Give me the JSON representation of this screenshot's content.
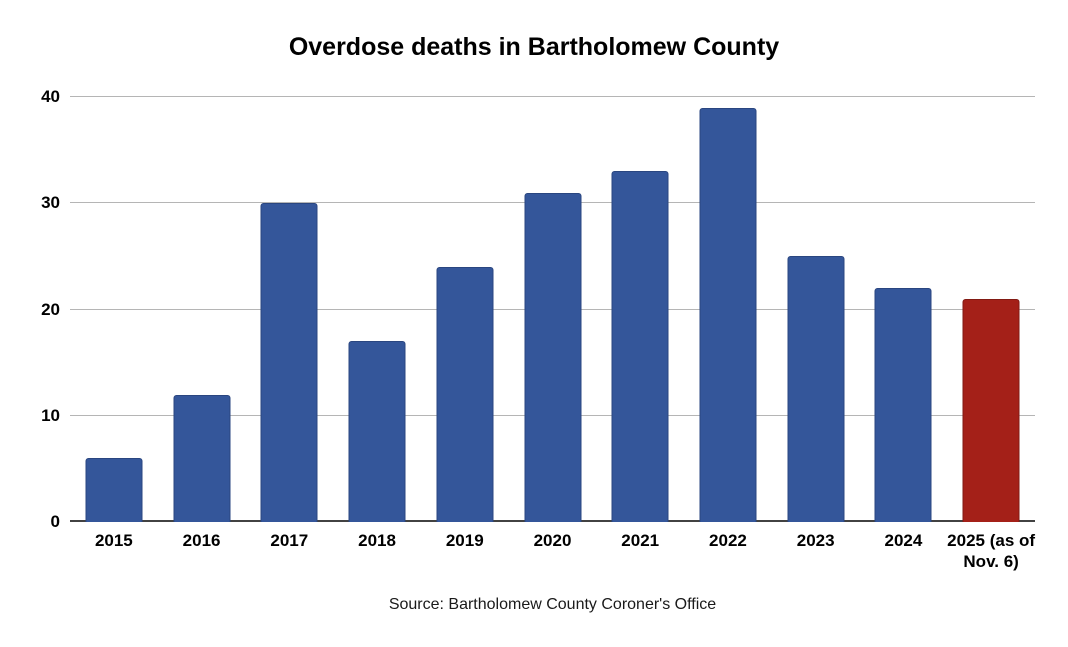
{
  "title": "Overdose deaths in Bartholomew County",
  "source": "Source: Bartholomew County Coroner's Office",
  "colors": {
    "bar_default": "#34569A",
    "bar_default_border": "#2a4680",
    "bar_highlight": "#A42018",
    "bar_highlight_border": "#821a13",
    "gridline": "#b5b5b5",
    "axis_line": "#424242",
    "title_text": "#000000",
    "tick_text": "#000000"
  },
  "chart_data": {
    "type": "bar",
    "title": "Overdose deaths in Bartholomew County",
    "categories": [
      "2015",
      "2016",
      "2017",
      "2018",
      "2019",
      "2020",
      "2021",
      "2022",
      "2023",
      "2024",
      "2025 (as of Nov. 6)"
    ],
    "values": [
      6,
      12,
      30,
      17,
      24,
      31,
      33,
      39,
      25,
      22,
      21
    ],
    "highlight_index": 10,
    "xlabel": "",
    "ylabel": "",
    "ylim": [
      0,
      40
    ],
    "yticks": [
      0,
      10,
      20,
      30,
      40
    ],
    "grid": true,
    "legend": "none",
    "caption": "Source: Bartholomew County Coroner's Office"
  }
}
